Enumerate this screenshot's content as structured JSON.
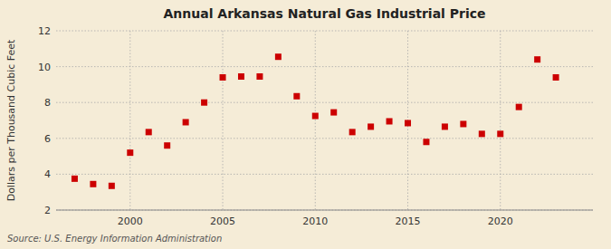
{
  "chart_data": {
    "type": "scatter",
    "title": "Annual Arkansas Natural Gas Industrial Price",
    "ylabel": "Dollars per Thousand Cubic Feet",
    "annotations": [
      "Source: U.S. Energy Information Administration"
    ],
    "x": [
      1997,
      1998,
      1999,
      2000,
      2001,
      2002,
      2003,
      2004,
      2005,
      2006,
      2007,
      2008,
      2009,
      2010,
      2011,
      2012,
      2013,
      2014,
      2015,
      2016,
      2017,
      2018,
      2019,
      2020,
      2021,
      2022,
      2023
    ],
    "values": [
      3.75,
      3.45,
      3.35,
      5.2,
      6.35,
      5.6,
      6.9,
      8.0,
      9.4,
      9.45,
      9.45,
      10.55,
      8.35,
      7.25,
      7.45,
      6.35,
      6.65,
      6.95,
      6.85,
      5.8,
      6.65,
      6.8,
      6.25,
      6.25,
      7.75,
      10.4,
      9.4
    ],
    "color": "#cc0000",
    "marker": "square",
    "xlim": [
      1996,
      2025
    ],
    "ylim": [
      2,
      12
    ],
    "xticks": [
      2000,
      2005,
      2010,
      2015,
      2020
    ],
    "yticks": [
      2,
      4,
      6,
      8,
      10,
      12
    ],
    "grid": true
  }
}
